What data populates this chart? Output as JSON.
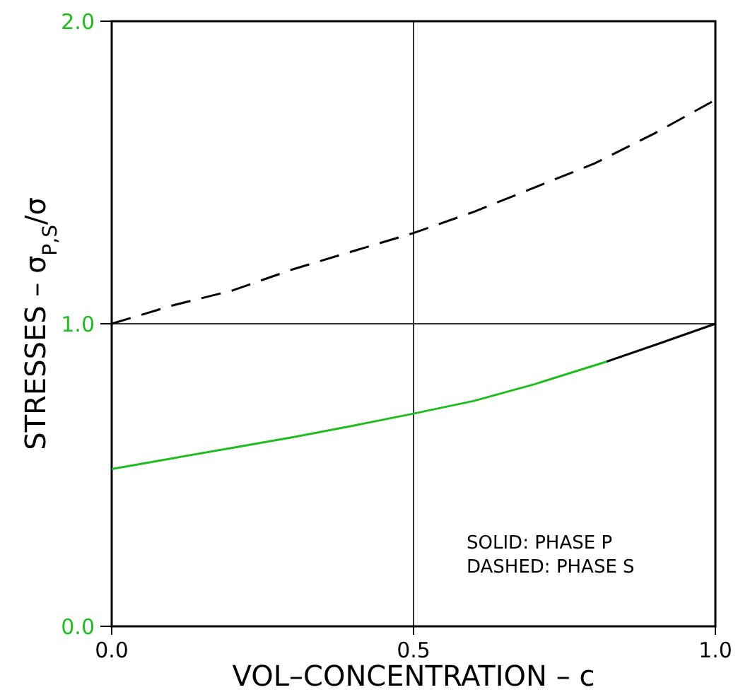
{
  "chart_data": {
    "type": "line",
    "xlabel": "VOL–CONCENTRATION  –  c",
    "ylabel": "STRESSES  –  σ$_{P,S}$/σ",
    "xlim": [
      0,
      1
    ],
    "xticks": [
      {
        "value": 0,
        "label": "0.0"
      },
      0.5,
      {
        "value": 1,
        "label": "1.0"
      }
    ],
    "ylim": [
      0,
      2
    ],
    "yticks": [
      {
        "value": 0,
        "label": "0.0"
      },
      {
        "value": 1,
        "label": "1.0"
      },
      {
        "value": 2,
        "label": "2.0"
      }
    ],
    "grid": true,
    "marker": "none",
    "series": [
      {
        "color": "#22bb22",
        "line_style": "solid",
        "x": [
          0,
          0.1,
          0.2,
          0.3,
          0.4,
          0.5,
          0.6,
          0.7,
          0.82
        ],
        "values": [
          0.52,
          0.555,
          0.59,
          0.625,
          0.663,
          0.703,
          0.745,
          0.8,
          0.875
        ]
      },
      {
        "color": "#000000",
        "line_style": "solid",
        "x": [
          0.82,
          0.9,
          1
        ],
        "values": [
          0.875,
          0.93,
          1.0
        ]
      },
      {
        "color": "#000000",
        "line_style": "dashed",
        "x": [
          0,
          0.1,
          0.2,
          0.3,
          0.4,
          0.5,
          0.6,
          0.7,
          0.8,
          0.9,
          1
        ],
        "values": [
          1.0,
          1.06,
          1.11,
          1.18,
          1.24,
          1.3,
          1.37,
          1.45,
          1.53,
          1.63,
          1.74
        ]
      }
    ],
    "annotations": [
      "SOLID:  PHASE  P",
      "DASHED:  PHASE  S"
    ]
  }
}
